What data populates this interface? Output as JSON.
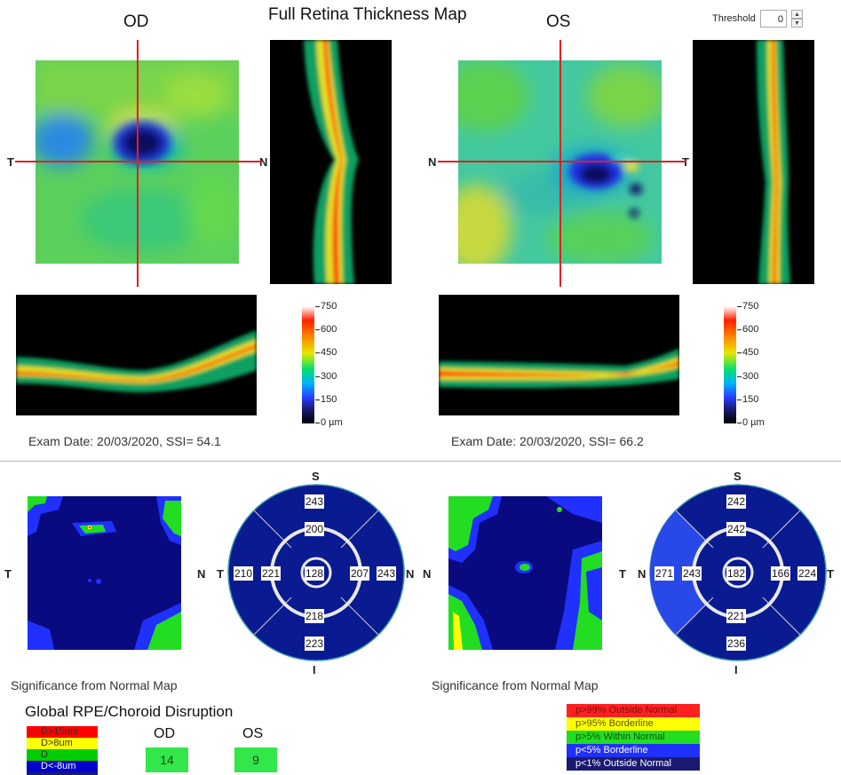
{
  "header": {
    "title": "Full Retina Thickness Map",
    "threshold_label": "Threshold",
    "threshold_value": "0"
  },
  "od": {
    "eye_label": "OD",
    "left_label": "T",
    "right_label": "N",
    "exam_info": "Exam Date: 20/03/2020, SSI= 54.1",
    "sig_title": "Significance from Normal Map",
    "sig_left_label": "T",
    "sig_right_label": "N",
    "grid": {
      "top_label": "S",
      "bottom_label": "I",
      "left_label": "T",
      "right_label": "N",
      "outer_top": "243",
      "inner_top": "200",
      "center": "128",
      "outer_left": "210",
      "inner_left": "221",
      "inner_right": "207",
      "outer_right": "243",
      "inner_bottom": "218",
      "outer_bottom": "223"
    }
  },
  "os": {
    "eye_label": "OS",
    "left_label": "N",
    "right_label": "T",
    "exam_info": "Exam Date: 20/03/2020, SSI= 66.2",
    "sig_title": "Significance from Normal Map",
    "sig_left_label": "N",
    "sig_right_label": "T",
    "grid": {
      "top_label": "S",
      "bottom_label": "I",
      "left_label": "N",
      "right_label": "T",
      "outer_top": "242",
      "inner_top": "242",
      "center": "182",
      "outer_left": "271",
      "inner_left": "243",
      "inner_right": "166",
      "outer_right": "224",
      "inner_bottom": "221",
      "outer_bottom": "236"
    }
  },
  "colorbar": {
    "ticks": [
      "750",
      "600",
      "450",
      "300",
      "150",
      "0 µm"
    ]
  },
  "global": {
    "title": "Global RPE/Choroid Disruption",
    "legend": [
      {
        "label": "D>15um",
        "color": "#ff0000"
      },
      {
        "label": "D>8um",
        "color": "#ffff00"
      },
      {
        "label": "D",
        "color": "#00cc00"
      },
      {
        "label": "D<-8um",
        "color": "#0000cc"
      }
    ],
    "od_label": "OD",
    "os_label": "OS",
    "od_value": "14",
    "os_value": "9"
  },
  "sig_legend": [
    {
      "label": "p>99% Outside Normal",
      "color": "#ff2020"
    },
    {
      "label": "p>95% Borderline",
      "color": "#ffff00"
    },
    {
      "label": "p>5% Within Normal",
      "color": "#22dd22"
    },
    {
      "label": "p<5% Borderline",
      "color": "#2030ff"
    },
    {
      "label": "p<1% Outside Normal",
      "color": "#1a1a70"
    }
  ]
}
